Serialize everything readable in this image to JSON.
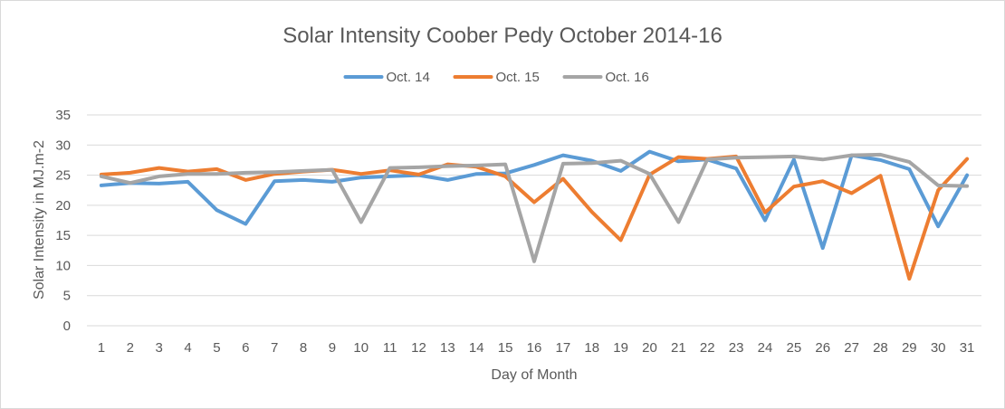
{
  "chart_data": {
    "type": "line",
    "title": "Solar Intensity Coober Pedy October 2014-16",
    "xlabel": "Day of Month",
    "ylabel": "Solar Intensity in MJ.m-2",
    "ylim": [
      0,
      35
    ],
    "yticks": [
      0,
      5,
      10,
      15,
      20,
      25,
      30,
      35
    ],
    "grid": true,
    "legend": "top",
    "categories": [
      "1",
      "2",
      "3",
      "4",
      "5",
      "6",
      "7",
      "8",
      "9",
      "10",
      "11",
      "12",
      "13",
      "14",
      "15",
      "16",
      "17",
      "18",
      "19",
      "20",
      "21",
      "22",
      "23",
      "24",
      "25",
      "26",
      "27",
      "28",
      "29",
      "30",
      "31"
    ],
    "series": [
      {
        "name": "Oct. 14",
        "color": "#5b9bd5",
        "values": [
          23.3,
          23.7,
          23.6,
          23.9,
          19.2,
          16.9,
          24.0,
          24.2,
          23.9,
          24.6,
          24.8,
          25.0,
          24.2,
          25.2,
          25.3,
          26.7,
          28.3,
          27.4,
          25.7,
          28.9,
          27.3,
          27.6,
          26.1,
          17.5,
          27.6,
          12.9,
          28.3,
          27.5,
          26.0,
          16.5,
          25.0
        ]
      },
      {
        "name": "Oct. 15",
        "color": "#ed7d31",
        "values": [
          25.1,
          25.4,
          26.2,
          25.6,
          26.0,
          24.2,
          25.2,
          25.6,
          25.9,
          25.2,
          25.8,
          25.1,
          26.8,
          26.4,
          24.8,
          20.5,
          24.4,
          18.9,
          14.2,
          25.1,
          28.0,
          27.7,
          28.1,
          18.8,
          23.1,
          24.0,
          22.0,
          24.9,
          7.8,
          22.5,
          27.7
        ]
      },
      {
        "name": "Oct. 16",
        "color": "#a5a5a5",
        "values": [
          24.8,
          23.7,
          24.8,
          25.2,
          25.2,
          25.4,
          25.5,
          25.7,
          25.9,
          17.2,
          26.2,
          26.3,
          26.5,
          26.6,
          26.8,
          10.7,
          26.9,
          27.0,
          27.4,
          25.2,
          17.2,
          27.6,
          27.9,
          28.0,
          28.1,
          27.6,
          28.3,
          28.4,
          27.2,
          23.3,
          23.2
        ]
      }
    ]
  }
}
